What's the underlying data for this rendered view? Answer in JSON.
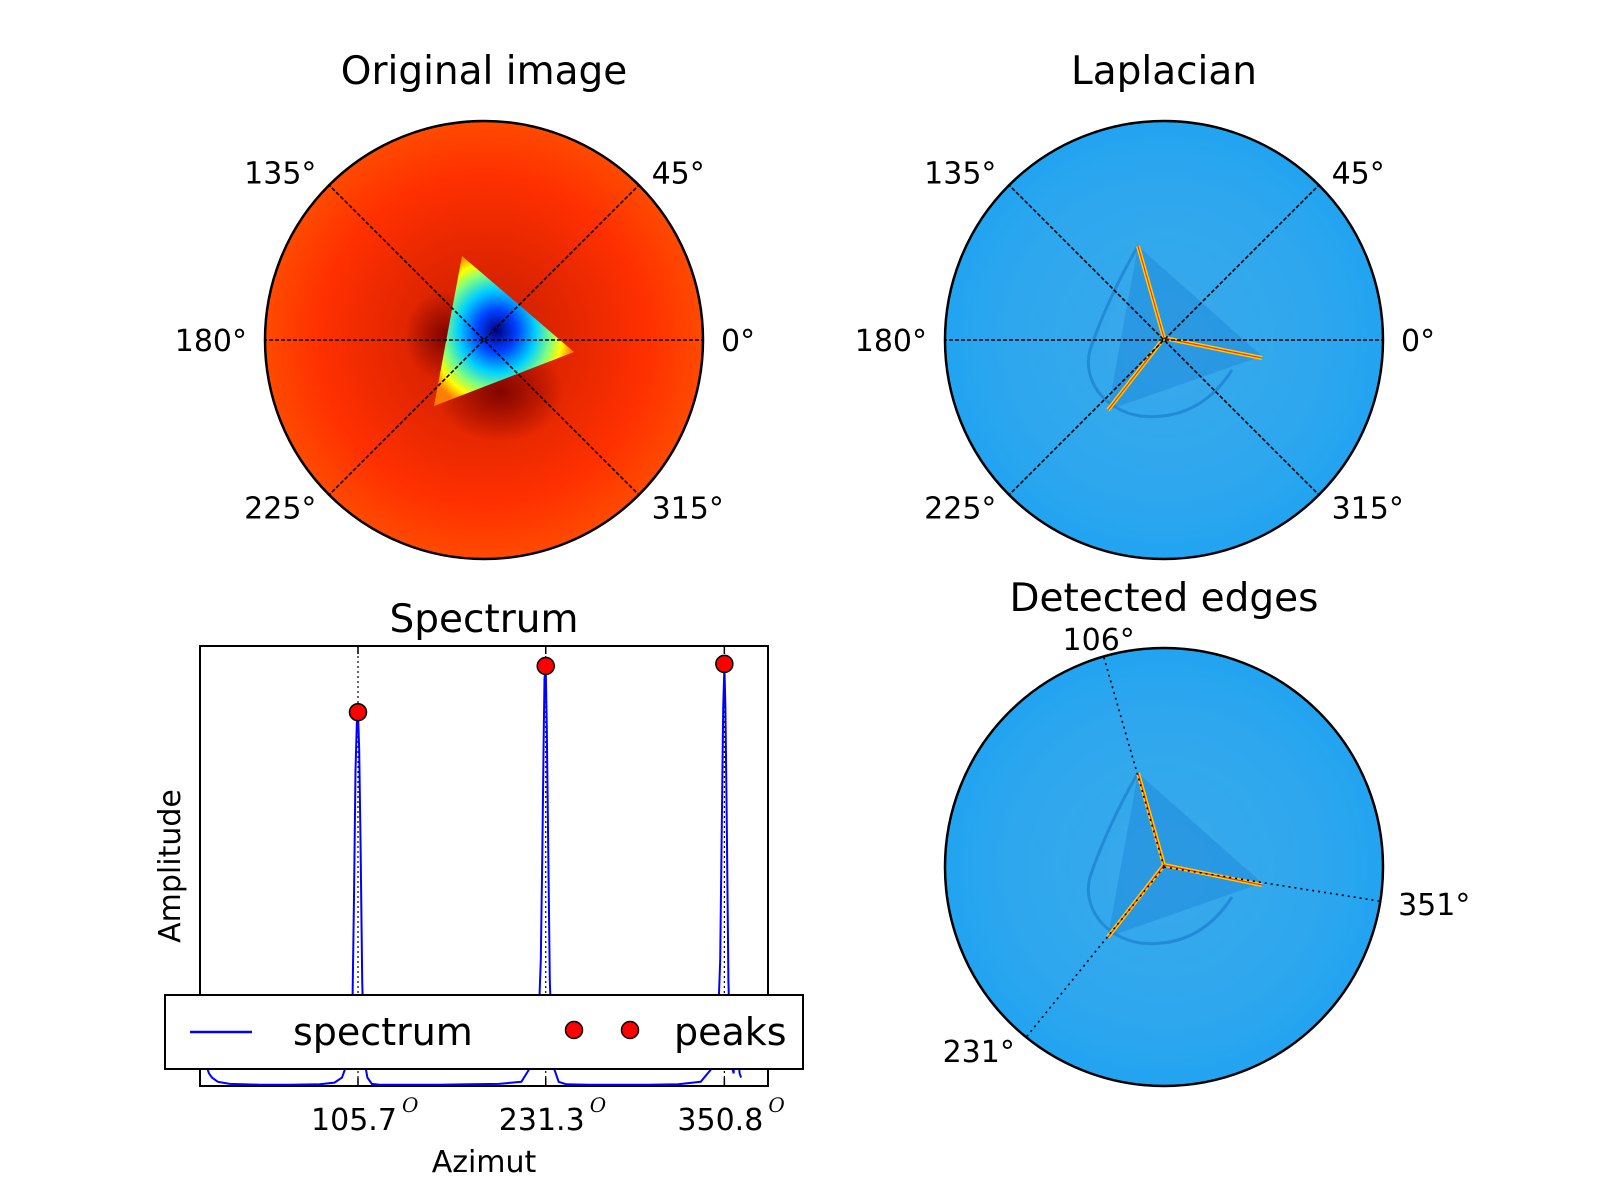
{
  "chart_data": [
    {
      "type": "polar-image",
      "title": "Original image",
      "angle_ticks": [
        {
          "deg": 0,
          "label": "0°"
        },
        {
          "deg": 45,
          "label": "45°"
        },
        {
          "deg": 135,
          "label": "135°"
        },
        {
          "deg": 180,
          "label": "180°"
        },
        {
          "deg": 225,
          "label": "225°"
        },
        {
          "deg": 315,
          "label": "315°"
        }
      ],
      "colormap": "jet",
      "grid": true
    },
    {
      "type": "polar-image",
      "title": "Laplacian",
      "angle_ticks": [
        {
          "deg": 0,
          "label": "0°"
        },
        {
          "deg": 45,
          "label": "45°"
        },
        {
          "deg": 135,
          "label": "135°"
        },
        {
          "deg": 180,
          "label": "180°"
        },
        {
          "deg": 225,
          "label": "225°"
        },
        {
          "deg": 315,
          "label": "315°"
        }
      ],
      "colormap": "jet",
      "grid": true
    },
    {
      "type": "line",
      "title": "Spectrum",
      "xlabel": "Azimut",
      "ylabel": "Amplitude",
      "xlim": [
        0,
        380
      ],
      "ylim": [
        0,
        1
      ],
      "xticks": [
        {
          "value": 105.7,
          "label": "105.7"
        },
        {
          "value": 231.3,
          "label": "231.3"
        },
        {
          "value": 350.8,
          "label": "350.8"
        }
      ],
      "xtick_unit": "O",
      "series": [
        {
          "name": "spectrum",
          "color": "#0000ff",
          "x": [
            0,
            2,
            4,
            6,
            8,
            10,
            12,
            20,
            40,
            60,
            80,
            90,
            95,
            98,
            100,
            101,
            102,
            103,
            104,
            105,
            105.7,
            106.5,
            107.5,
            108.5,
            110,
            112,
            115,
            120,
            140,
            160,
            180,
            200,
            215,
            222,
            226,
            228,
            229,
            230,
            230.5,
            231.3,
            232,
            233,
            234,
            236,
            240,
            245,
            260,
            280,
            300,
            320,
            335,
            342,
            346,
            348,
            349,
            350,
            350.8,
            351.5,
            352.5,
            353.5,
            355,
            357,
            358,
            360,
            361,
            362
          ],
          "y": [
            0.06,
            0.07,
            0.05,
            0.03,
            0.02,
            0.015,
            0.01,
            0.005,
            0.003,
            0.003,
            0.004,
            0.008,
            0.02,
            0.05,
            0.06,
            0.05,
            0.2,
            0.45,
            0.75,
            0.87,
            0.89,
            0.8,
            0.55,
            0.25,
            0.06,
            0.02,
            0.005,
            0.003,
            0.003,
            0.003,
            0.004,
            0.005,
            0.01,
            0.05,
            0.1,
            0.3,
            0.55,
            0.85,
            0.97,
            1.0,
            0.85,
            0.55,
            0.25,
            0.05,
            0.01,
            0.004,
            0.003,
            0.003,
            0.003,
            0.004,
            0.01,
            0.04,
            0.1,
            0.3,
            0.6,
            0.9,
            1.0,
            0.9,
            0.6,
            0.25,
            0.06,
            0.03,
            0.1,
            0.08,
            0.03,
            0.02
          ]
        },
        {
          "name": "peaks",
          "color": "#ff0000",
          "marker": "o",
          "x": [
            105.7,
            231.3,
            350.8
          ],
          "y": [
            0.89,
            1.0,
            1.005
          ]
        }
      ],
      "legend_position": "lower-center"
    },
    {
      "type": "polar-image",
      "title": "Detected edges",
      "angle_ticks": [
        {
          "deg": 106,
          "label": "106°"
        },
        {
          "deg": 231,
          "label": "231°"
        },
        {
          "deg": 351,
          "label": "351°"
        }
      ],
      "colormap": "jet",
      "grid": true
    }
  ]
}
